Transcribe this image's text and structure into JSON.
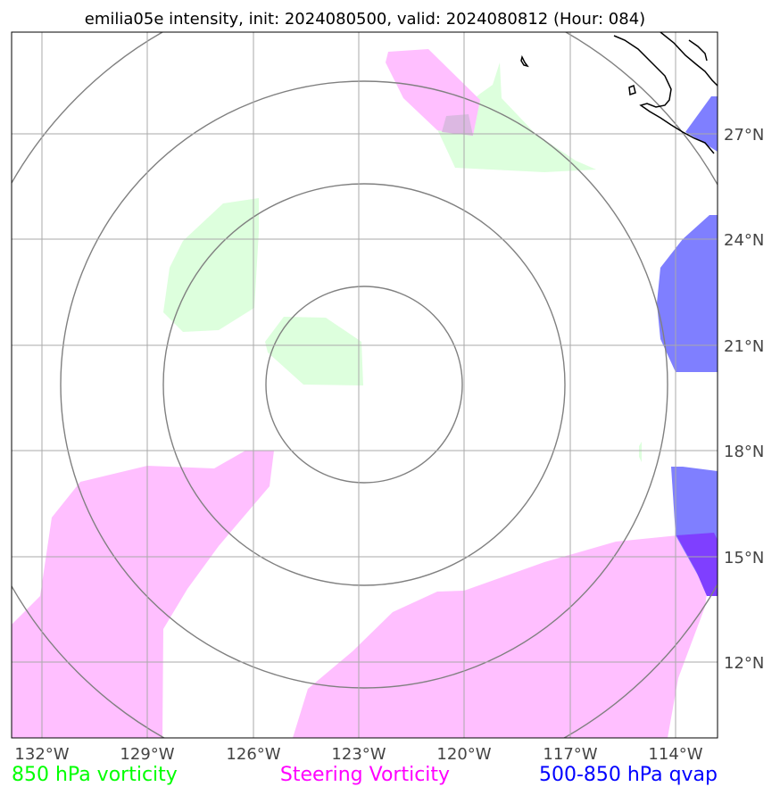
{
  "title": "emilia05e intensity, init: 2024080500, valid: 2024080812 (Hour: 084)",
  "x_ticks": [
    "132°W",
    "129°W",
    "126°W",
    "123°W",
    "120°W",
    "117°W",
    "114°W"
  ],
  "y_ticks": [
    "27°N",
    "24°N",
    "21°N",
    "18°N",
    "15°N",
    "12°N"
  ],
  "legend": {
    "vorticity_850": {
      "label": "850 hPa vorticity",
      "color": "#00ff00"
    },
    "steering": {
      "label": "Steering Vorticity",
      "color": "#ff00ff"
    },
    "qvap": {
      "label": "500-850 hPa qvap",
      "color": "#0000ff"
    }
  },
  "chart_data": {
    "type": "map",
    "lon_range": [
      -132.8,
      -112.8
    ],
    "lat_range": [
      9.9,
      29.9
    ],
    "gridlines": {
      "lon": [
        -132,
        -129,
        -126,
        -123,
        -120,
        -117,
        -114
      ],
      "lat": [
        27,
        24,
        21,
        18,
        15,
        12
      ]
    },
    "range_rings": {
      "center_lon": -123,
      "center_lat": 20,
      "count": 4
    },
    "fields": [
      {
        "name": "850 hPa vorticity",
        "color": "#ddffdd"
      },
      {
        "name": "Steering Vorticity",
        "color": "#ffbfff"
      },
      {
        "name": "500-850 hPa qvap",
        "color": "#7f7fff"
      }
    ],
    "coastline": "Baja California (northeast corner)"
  }
}
